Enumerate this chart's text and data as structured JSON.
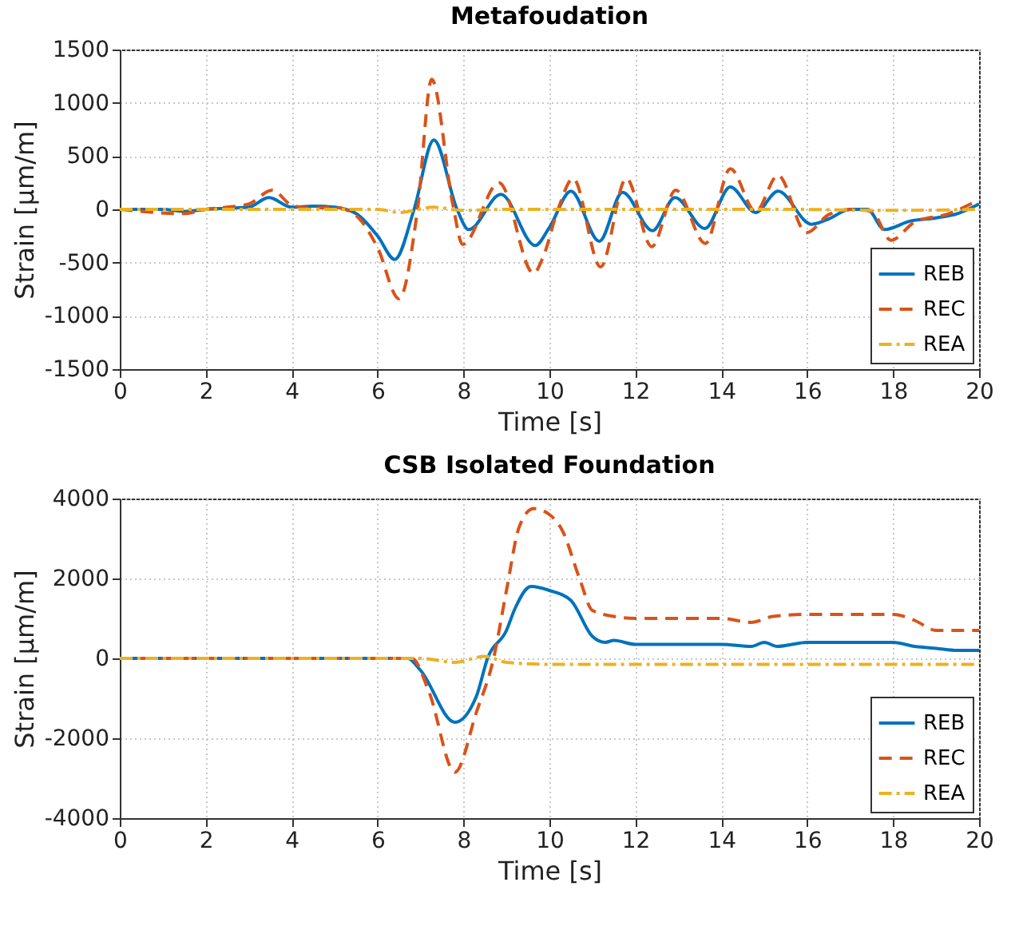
{
  "chart_data": [
    {
      "type": "line",
      "title": "Metafoudation",
      "xlabel": "Time [s]",
      "ylabel": "Strain [µm/m]",
      "xlim": [
        0,
        20
      ],
      "xticks": [
        0,
        2,
        4,
        6,
        8,
        10,
        12,
        14,
        16,
        18,
        20
      ],
      "ylim": [
        -1500,
        1500
      ],
      "yticks": [
        -1500,
        -1000,
        -500,
        0,
        500,
        1000,
        1500
      ],
      "grid": true,
      "legend": "bottom right",
      "series": [
        {
          "name": "REB",
          "color": "#0072bd",
          "line_style": "solid",
          "x": [
            0,
            1,
            1.5,
            2,
            2.5,
            3,
            3.47,
            4,
            4.5,
            5,
            5.5,
            6,
            6.4,
            6.85,
            7.31,
            7.85,
            8.12,
            8.87,
            9.67,
            10,
            10.5,
            11.16,
            11.7,
            12.4,
            12.92,
            13.62,
            14.21,
            14.8,
            15.32,
            16.1,
            16.5,
            17,
            17.4,
            17.8,
            18.4,
            19,
            19.5,
            20
          ],
          "values": [
            0,
            0,
            -20,
            0,
            10,
            20,
            110,
            20,
            30,
            20,
            -40,
            -250,
            -470,
            0,
            650,
            0,
            -190,
            140,
            -340,
            -170,
            170,
            -300,
            160,
            -200,
            110,
            -180,
            210,
            -30,
            170,
            -140,
            -90,
            0,
            0,
            -190,
            -110,
            -80,
            -40,
            50
          ]
        },
        {
          "name": "REC",
          "color": "#d95319",
          "line_style": "dashed",
          "x": [
            0,
            1.5,
            2,
            2.5,
            3,
            3.55,
            4,
            4.5,
            5,
            5.5,
            6,
            6.5,
            6.93,
            7.26,
            7.75,
            7.98,
            8.83,
            9.63,
            9.85,
            10.2,
            10.55,
            11.19,
            11.79,
            12.38,
            12.94,
            13.63,
            14.21,
            14.8,
            15.32,
            15.98,
            16.5,
            17,
            17.5,
            17.95,
            18.5,
            19.3,
            20
          ],
          "values": [
            0,
            -40,
            0,
            20,
            50,
            180,
            40,
            10,
            20,
            -60,
            -360,
            -840,
            0,
            1220,
            50,
            -330,
            250,
            -600,
            -450,
            0,
            290,
            -540,
            290,
            -350,
            180,
            -320,
            380,
            -20,
            320,
            -220,
            -50,
            0,
            -20,
            -290,
            -120,
            -40,
            90
          ]
        },
        {
          "name": "REA",
          "color": "#edb120",
          "line_style": "dashdot",
          "x": [
            0,
            6,
            6.5,
            7.3,
            8,
            9,
            12,
            15.5,
            18,
            20
          ],
          "values": [
            0,
            0,
            -30,
            20,
            -10,
            0,
            0,
            0,
            -10,
            0
          ]
        }
      ]
    },
    {
      "type": "line",
      "title": "CSB Isolated Foundation",
      "xlabel": "Time [s]",
      "ylabel": "Strain [µm/m]",
      "xlim": [
        0,
        20
      ],
      "xticks": [
        0,
        2,
        4,
        6,
        8,
        10,
        12,
        14,
        16,
        18,
        20
      ],
      "ylim": [
        -4000,
        4000
      ],
      "yticks": [
        -4000,
        -2000,
        0,
        2000,
        4000
      ],
      "grid": true,
      "legend": "bottom right",
      "series": [
        {
          "name": "REB",
          "color": "#0072bd",
          "line_style": "solid",
          "x": [
            0,
            6.7,
            7,
            7.8,
            8.3,
            8.56,
            9,
            9.2,
            9.57,
            10,
            10.5,
            11,
            11.3,
            11.5,
            12,
            14,
            14.7,
            15,
            15.3,
            16,
            18,
            18.5,
            19,
            19.5,
            20
          ],
          "values": [
            0,
            0,
            -300,
            -1600,
            -950,
            0,
            700,
            1250,
            1800,
            1700,
            1450,
            550,
            400,
            450,
            350,
            350,
            300,
            400,
            300,
            400,
            400,
            300,
            250,
            200,
            200
          ]
        },
        {
          "name": "REC",
          "color": "#d95319",
          "line_style": "dashed",
          "x": [
            0,
            6.8,
            7.2,
            7.8,
            8.3,
            8.7,
            9,
            9.3,
            9.63,
            10,
            10.3,
            10.7,
            11,
            11.5,
            12,
            13,
            14,
            14.7,
            15.2,
            16,
            17,
            18,
            18.5,
            19,
            19.5,
            20
          ],
          "values": [
            0,
            0,
            -850,
            -2850,
            -1350,
            0,
            1700,
            3300,
            3750,
            3600,
            3200,
            2000,
            1200,
            1050,
            1000,
            1000,
            1000,
            900,
            1050,
            1100,
            1100,
            1100,
            950,
            700,
            700,
            700
          ]
        },
        {
          "name": "REA",
          "color": "#edb120",
          "line_style": "dashdot",
          "x": [
            0,
            7,
            7.8,
            8.5,
            9,
            10,
            20
          ],
          "values": [
            0,
            0,
            -100,
            50,
            -100,
            -150,
            -150
          ]
        }
      ]
    }
  ]
}
